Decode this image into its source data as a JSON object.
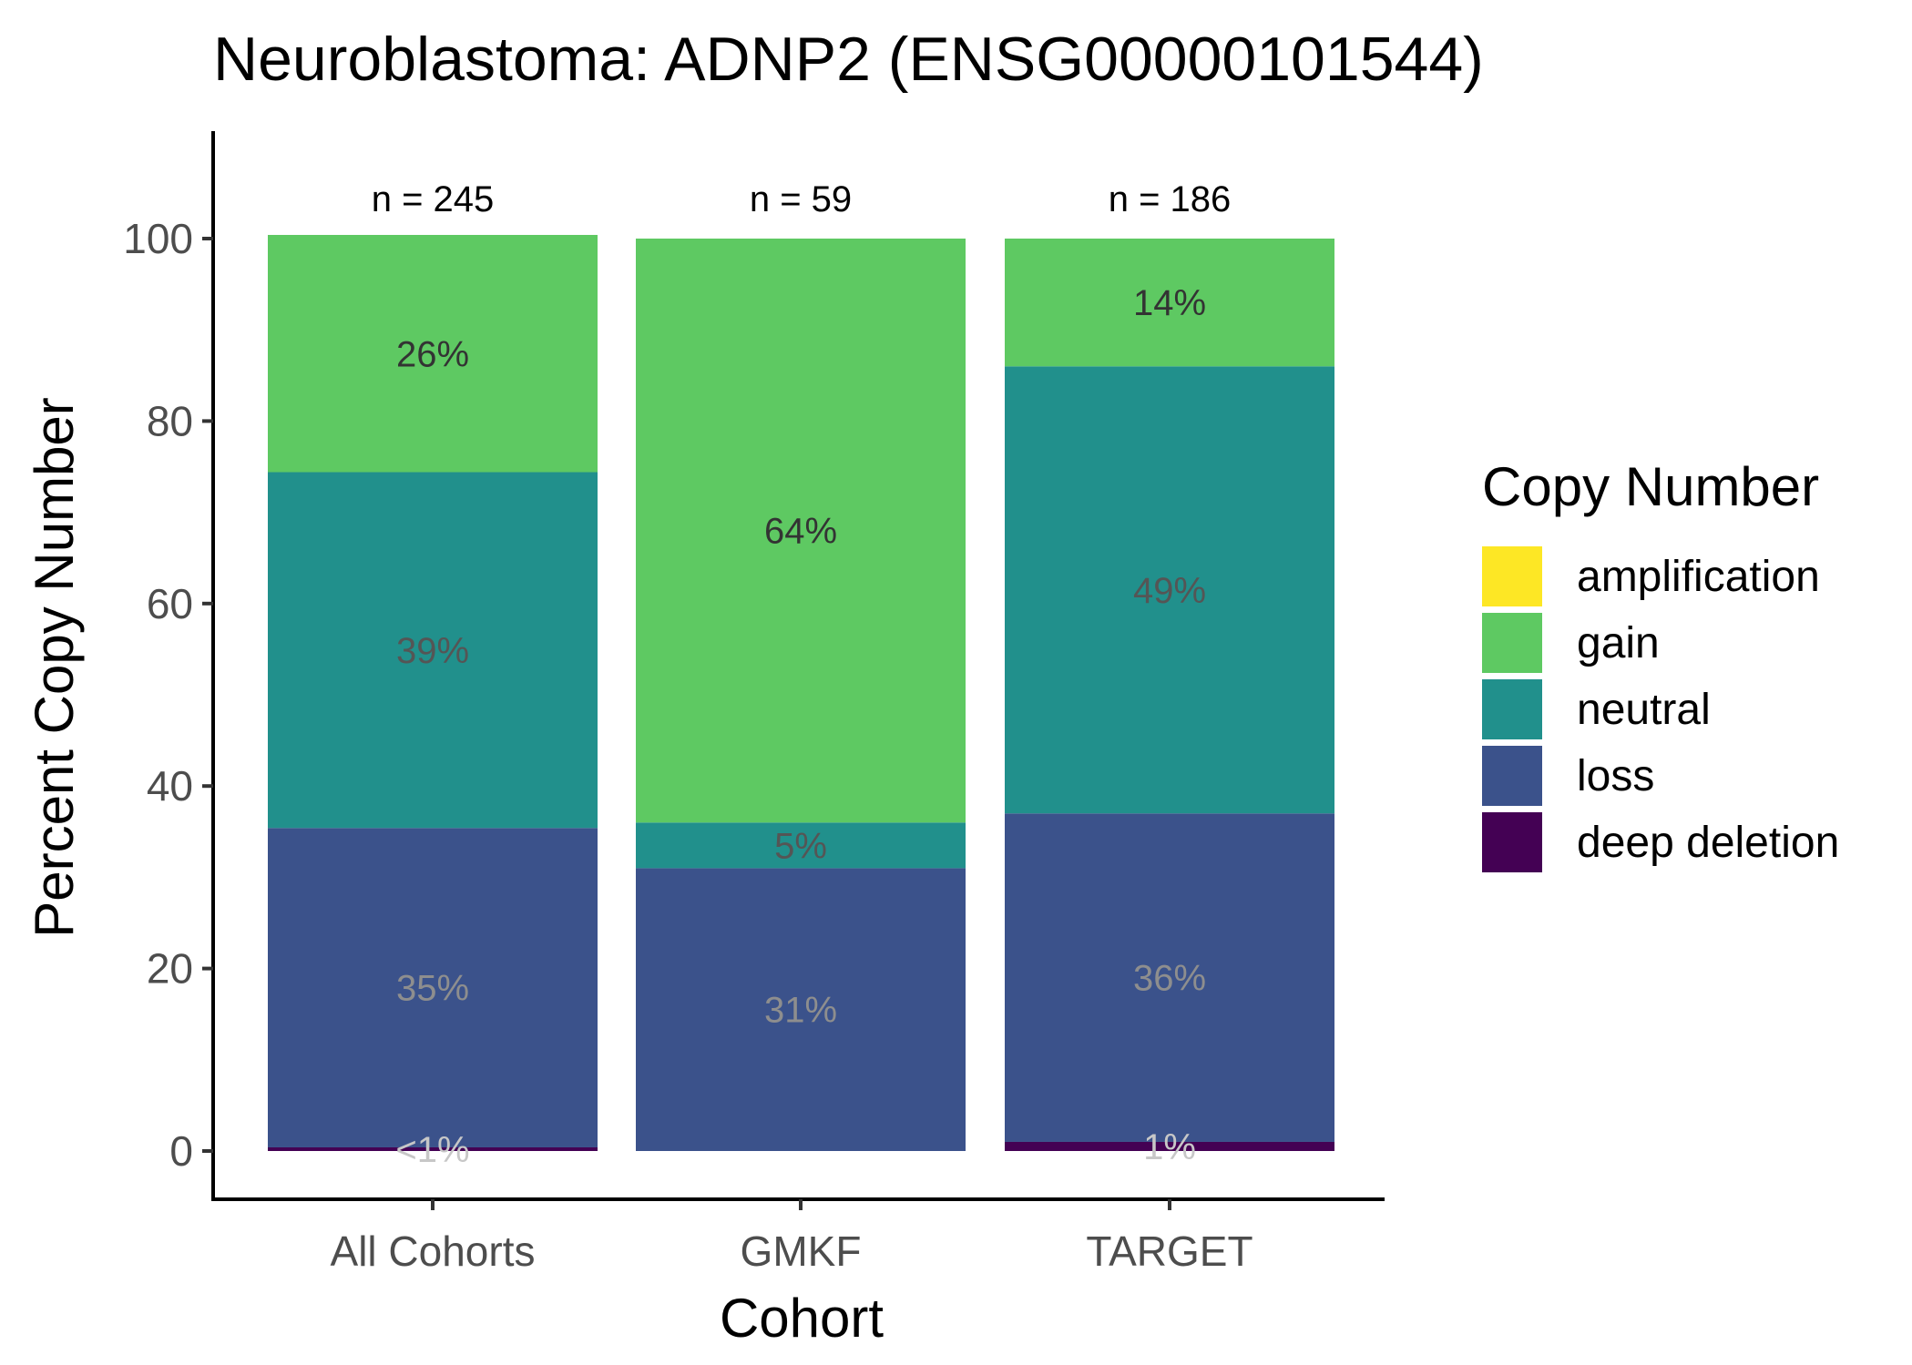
{
  "chart_data": {
    "type": "bar",
    "stacked": true,
    "title": "Neuroblastoma: ADNP2 (ENSG00000101544)",
    "xlabel": "Cohort",
    "ylabel": "Percent Copy Number",
    "ylim": [
      -5,
      111
    ],
    "yticks": [
      0,
      20,
      40,
      60,
      80,
      100
    ],
    "categories": [
      "All Cohorts",
      "GMKF",
      "TARGET"
    ],
    "counts": [
      "n = 245",
      "n = 59",
      "n = 186"
    ],
    "legend_title": "Copy Number",
    "legend_position": "right",
    "series": [
      {
        "name": "amplification",
        "color": "#FDE725",
        "values": [
          0,
          0,
          0
        ],
        "labels": [
          "",
          "",
          ""
        ]
      },
      {
        "name": "gain",
        "color": "#5EC962",
        "values": [
          26,
          64,
          14
        ],
        "labels": [
          "26%",
          "64%",
          "14%"
        ]
      },
      {
        "name": "neutral",
        "color": "#21908C",
        "values": [
          39,
          5,
          49
        ],
        "labels": [
          "39%",
          "5%",
          "49%"
        ]
      },
      {
        "name": "loss",
        "color": "#3B528B",
        "values": [
          35,
          31,
          36
        ],
        "labels": [
          "35%",
          "31%",
          "36%"
        ]
      },
      {
        "name": "deep deletion",
        "color": "#440154",
        "values": [
          0.4,
          0,
          1
        ],
        "labels": [
          "<1%",
          "",
          "1%"
        ]
      }
    ]
  }
}
